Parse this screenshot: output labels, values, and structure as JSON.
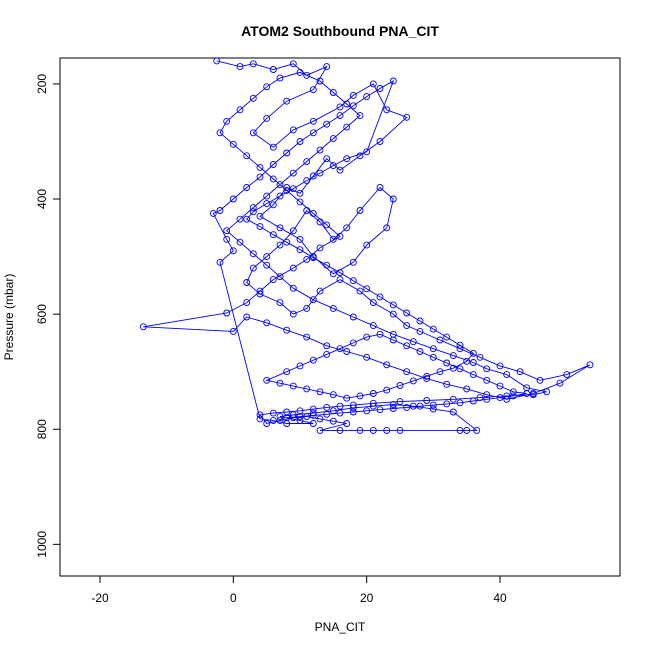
{
  "chart_data": {
    "type": "scatter",
    "title": "ATOM2 Southbound PNA_CIT",
    "xlabel": "PNA_CIT",
    "ylabel": "Pressure (mbar)",
    "xlim": [
      -26,
      58
    ],
    "ylim": [
      1055,
      155
    ],
    "y_reversed": true,
    "x_ticks": [
      -20,
      0,
      20,
      40
    ],
    "y_ticks": [
      200,
      400,
      600,
      800,
      1000
    ],
    "grid": false,
    "legend": "none",
    "color": "#0000ff",
    "marker": "open-circle",
    "connected": true,
    "points": [
      [
        -2.5,
        160
      ],
      [
        1,
        170
      ],
      [
        3,
        165
      ],
      [
        6,
        175
      ],
      [
        9,
        165
      ],
      [
        11,
        185
      ],
      [
        14,
        170
      ],
      [
        12,
        210
      ],
      [
        8,
        230
      ],
      [
        5,
        260
      ],
      [
        3,
        285
      ],
      [
        6,
        310
      ],
      [
        9,
        280
      ],
      [
        12,
        265
      ],
      [
        16,
        240
      ],
      [
        18,
        220
      ],
      [
        21,
        200
      ],
      [
        23,
        245
      ],
      [
        26,
        258
      ],
      [
        22,
        300
      ],
      [
        19,
        325
      ],
      [
        16,
        350
      ],
      [
        14,
        330
      ],
      [
        12,
        360
      ],
      [
        10,
        390
      ],
      [
        8,
        380
      ],
      [
        6,
        410
      ],
      [
        4,
        430
      ],
      [
        7,
        450
      ],
      [
        10,
        470
      ],
      [
        12,
        500
      ],
      [
        15,
        530
      ],
      [
        18,
        510
      ],
      [
        20,
        480
      ],
      [
        23,
        450
      ],
      [
        24,
        400
      ],
      [
        22,
        380
      ],
      [
        19,
        420
      ],
      [
        17,
        450
      ],
      [
        15,
        470
      ],
      [
        13,
        440
      ],
      [
        11,
        420
      ],
      [
        9,
        455
      ],
      [
        7,
        480
      ],
      [
        5,
        500
      ],
      [
        3,
        520
      ],
      [
        2,
        545
      ],
      [
        4,
        565
      ],
      [
        7,
        580
      ],
      [
        9,
        600
      ],
      [
        11,
        590
      ],
      [
        13,
        560
      ],
      [
        16,
        540
      ],
      [
        19,
        560
      ],
      [
        21,
        580
      ],
      [
        24,
        600
      ],
      [
        26,
        620
      ],
      [
        28,
        630
      ],
      [
        31,
        645
      ],
      [
        34,
        660
      ],
      [
        37,
        675
      ],
      [
        40,
        690
      ],
      [
        43,
        700
      ],
      [
        46,
        715
      ],
      [
        50,
        705
      ],
      [
        53.5,
        688
      ],
      [
        49,
        720
      ],
      [
        45,
        738
      ],
      [
        41,
        748
      ],
      [
        38,
        740
      ],
      [
        35,
        730
      ],
      [
        32,
        722
      ],
      [
        29,
        712
      ],
      [
        26,
        700
      ],
      [
        23,
        688
      ],
      [
        20,
        675
      ],
      [
        17,
        665
      ],
      [
        14,
        655
      ],
      [
        11,
        640
      ],
      [
        8,
        628
      ],
      [
        5,
        615
      ],
      [
        2,
        605
      ],
      [
        0,
        630
      ],
      [
        -13.5,
        622
      ],
      [
        -1,
        598
      ],
      [
        2,
        580
      ],
      [
        4,
        560
      ],
      [
        6,
        540
      ],
      [
        9,
        520
      ],
      [
        11,
        505
      ],
      [
        13,
        485
      ],
      [
        16,
        465
      ],
      [
        14,
        445
      ],
      [
        12,
        425
      ],
      [
        10,
        405
      ],
      [
        8,
        385
      ],
      [
        6,
        365
      ],
      [
        4,
        345
      ],
      [
        2,
        325
      ],
      [
        0,
        305
      ],
      [
        -2,
        285
      ],
      [
        -1,
        265
      ],
      [
        1,
        245
      ],
      [
        3,
        225
      ],
      [
        5,
        205
      ],
      [
        7,
        190
      ],
      [
        10,
        180
      ],
      [
        13,
        195
      ],
      [
        15,
        215
      ],
      [
        17,
        235
      ],
      [
        19,
        255
      ],
      [
        17,
        275
      ],
      [
        15,
        295
      ],
      [
        13,
        315
      ],
      [
        11,
        335
      ],
      [
        9,
        355
      ],
      [
        7,
        375
      ],
      [
        5,
        395
      ],
      [
        3,
        415
      ],
      [
        1,
        435
      ],
      [
        -1,
        455
      ],
      [
        1,
        475
      ],
      [
        3,
        495
      ],
      [
        5,
        515
      ],
      [
        7,
        535
      ],
      [
        9,
        555
      ],
      [
        12,
        575
      ],
      [
        15,
        590
      ],
      [
        18,
        605
      ],
      [
        21,
        620
      ],
      [
        24,
        635
      ],
      [
        27,
        648
      ],
      [
        30,
        660
      ],
      [
        33,
        672
      ],
      [
        36,
        684
      ],
      [
        38,
        695
      ],
      [
        41,
        705
      ],
      [
        44,
        728
      ],
      [
        47,
        735
      ],
      [
        45,
        740
      ],
      [
        41,
        742
      ],
      [
        37,
        745
      ],
      [
        33,
        748
      ],
      [
        29,
        750
      ],
      [
        25,
        752
      ],
      [
        21,
        755
      ],
      [
        18,
        758
      ],
      [
        16,
        760
      ],
      [
        14,
        762
      ],
      [
        12,
        765
      ],
      [
        10,
        768
      ],
      [
        8,
        770
      ],
      [
        6,
        772
      ],
      [
        4,
        775
      ],
      [
        5,
        790
      ],
      [
        7,
        785
      ],
      [
        9,
        780
      ],
      [
        11,
        778
      ],
      [
        13,
        782
      ],
      [
        15,
        786
      ],
      [
        17,
        790
      ],
      [
        13,
        802
      ],
      [
        16,
        802
      ],
      [
        19,
        802
      ],
      [
        21,
        802
      ],
      [
        23,
        802
      ],
      [
        25,
        802
      ],
      [
        34,
        802
      ],
      [
        35,
        802
      ],
      [
        36.5,
        802
      ],
      [
        33,
        770
      ],
      [
        30,
        765
      ],
      [
        27,
        760
      ],
      [
        24,
        757
      ],
      [
        21,
        760
      ],
      [
        18,
        763
      ],
      [
        15,
        768
      ],
      [
        12,
        772
      ],
      [
        9,
        775
      ],
      [
        7,
        778
      ],
      [
        10,
        785
      ],
      [
        12,
        790
      ],
      [
        8,
        790
      ],
      [
        6,
        785
      ],
      [
        4,
        782
      ],
      [
        -2,
        510
      ],
      [
        0,
        490
      ],
      [
        -1,
        470
      ],
      [
        -3,
        425
      ],
      [
        -2,
        420
      ],
      [
        0,
        400
      ],
      [
        2,
        380
      ],
      [
        4,
        362
      ],
      [
        6,
        340
      ],
      [
        8,
        320
      ],
      [
        10,
        300
      ],
      [
        12,
        285
      ],
      [
        14,
        270
      ],
      [
        16,
        255
      ],
      [
        18,
        238
      ],
      [
        20,
        222
      ],
      [
        22,
        208
      ],
      [
        24,
        195
      ],
      [
        20,
        318
      ],
      [
        17,
        330
      ],
      [
        15,
        342
      ],
      [
        13,
        355
      ],
      [
        11,
        368
      ],
      [
        9,
        382
      ],
      [
        7,
        395
      ],
      [
        5,
        408
      ],
      [
        3,
        422
      ],
      [
        2,
        435
      ],
      [
        4,
        448
      ],
      [
        6,
        462
      ],
      [
        8,
        475
      ],
      [
        10,
        488
      ],
      [
        12,
        502
      ],
      [
        14,
        515
      ],
      [
        16,
        528
      ],
      [
        18,
        542
      ],
      [
        20,
        556
      ],
      [
        22,
        570
      ],
      [
        24,
        584
      ],
      [
        26,
        598
      ],
      [
        28,
        612
      ],
      [
        30,
        626
      ],
      [
        32,
        640
      ],
      [
        34,
        654
      ],
      [
        36,
        668
      ],
      [
        35,
        682
      ],
      [
        33,
        694
      ],
      [
        31,
        700
      ],
      [
        29,
        708
      ],
      [
        27,
        716
      ],
      [
        25,
        724
      ],
      [
        23,
        732
      ],
      [
        21,
        738
      ],
      [
        19,
        742
      ],
      [
        17,
        746
      ],
      [
        15,
        740
      ],
      [
        13,
        735
      ],
      [
        11,
        730
      ],
      [
        9,
        725
      ],
      [
        7,
        720
      ],
      [
        5,
        715
      ],
      [
        8,
        700
      ],
      [
        10,
        690
      ],
      [
        12,
        680
      ],
      [
        14,
        670
      ],
      [
        16,
        660
      ],
      [
        18,
        650
      ],
      [
        20,
        640
      ],
      [
        22,
        635
      ],
      [
        24,
        645
      ],
      [
        26,
        655
      ],
      [
        28,
        665
      ],
      [
        30,
        675
      ],
      [
        32,
        685
      ],
      [
        34,
        695
      ],
      [
        36,
        705
      ],
      [
        38,
        715
      ],
      [
        40,
        725
      ],
      [
        42,
        735
      ],
      [
        44,
        738
      ],
      [
        42,
        742
      ],
      [
        40,
        745
      ],
      [
        38,
        748
      ],
      [
        36,
        751
      ],
      [
        34,
        754
      ],
      [
        32,
        756
      ],
      [
        30,
        758
      ],
      [
        28,
        760
      ],
      [
        26,
        762
      ],
      [
        24,
        764
      ],
      [
        22,
        766
      ],
      [
        20,
        768
      ],
      [
        18,
        770
      ],
      [
        16,
        772
      ],
      [
        14,
        774
      ],
      [
        12,
        776
      ],
      [
        10,
        778
      ],
      [
        8,
        780
      ]
    ]
  }
}
